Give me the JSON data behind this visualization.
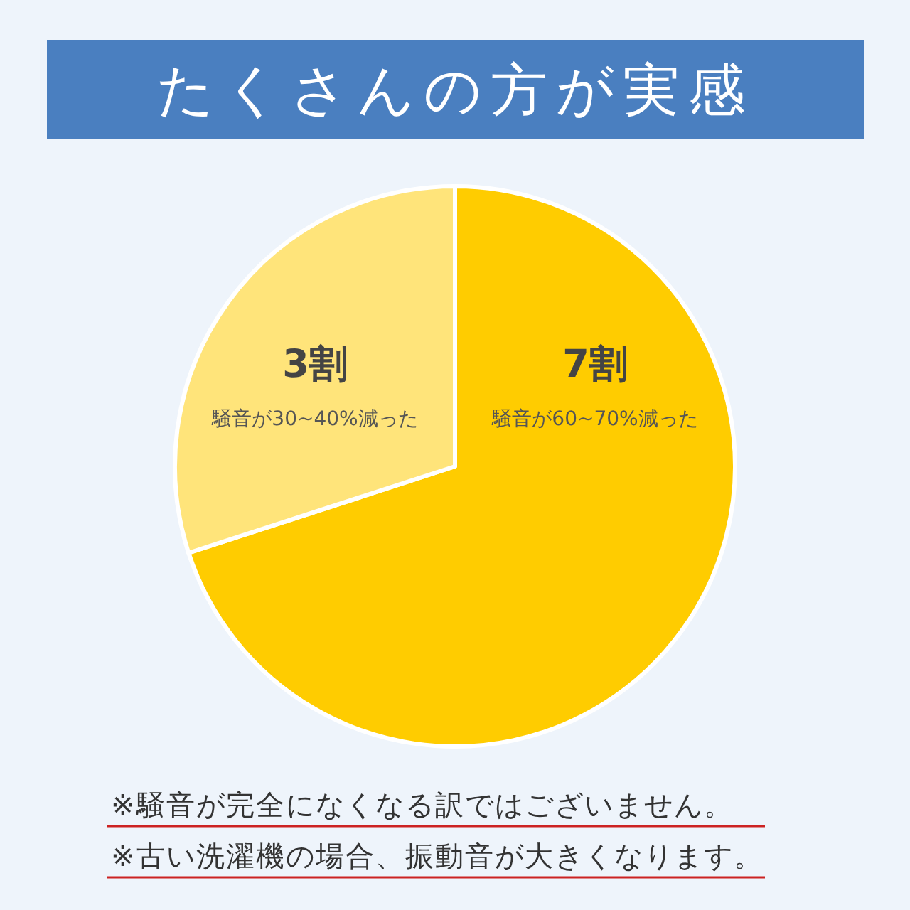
{
  "chart_data": {
    "type": "pie",
    "title": "たくさんの方が実感",
    "categories": [
      "騒音が60~70%減った",
      "騒音が30~40%減った"
    ],
    "values": [
      7,
      3
    ],
    "value_labels": [
      "7割",
      "3割"
    ],
    "colors": [
      "#ffcc00",
      "#ffe47a"
    ],
    "annotations": [
      "※騒音が完全になくなる訳ではございません。",
      "※古い洗濯機の場合、振動音が大きくなります。"
    ]
  }
}
